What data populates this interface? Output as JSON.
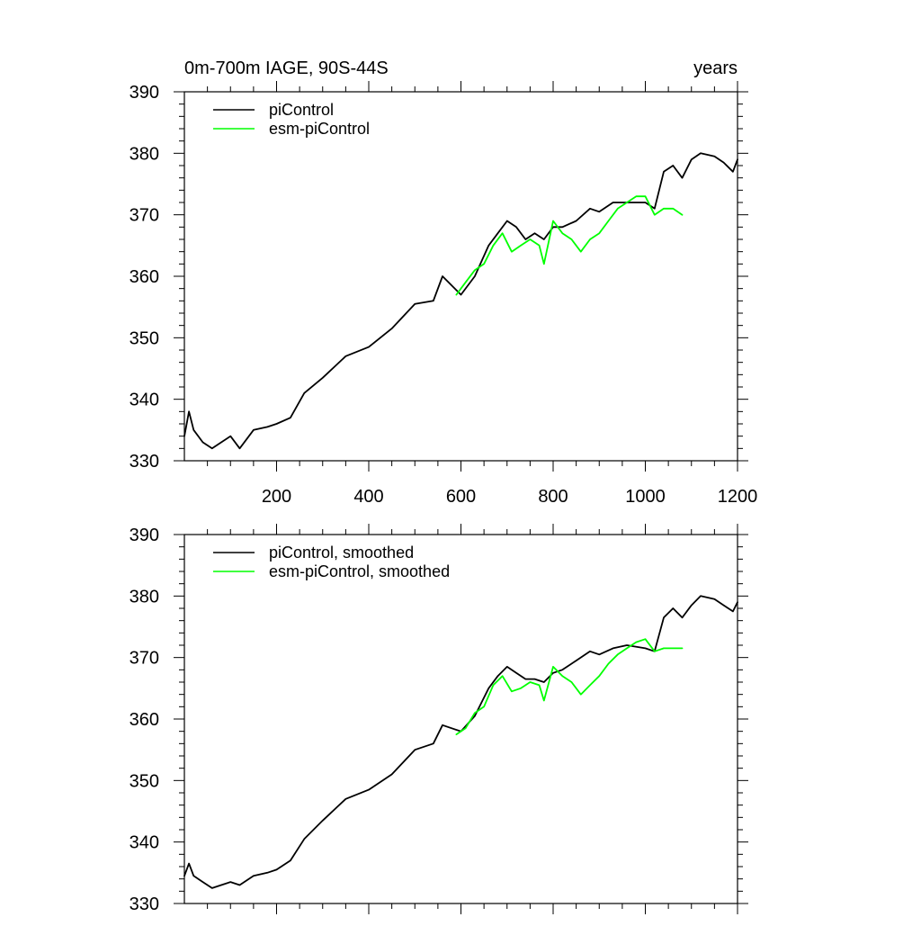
{
  "chart_data": [
    {
      "type": "line",
      "title": "0m-700m IAGE, 90S-44S",
      "units": "years",
      "xlim": [
        0,
        1200
      ],
      "ylim": [
        330,
        390
      ],
      "xticks": [
        200,
        400,
        600,
        800,
        1000,
        1200
      ],
      "yticks": [
        330,
        340,
        350,
        360,
        370,
        380,
        390
      ],
      "show_x_tick_labels": true,
      "series": [
        {
          "name": "piControl",
          "color": "#000000",
          "x": [
            0,
            10,
            20,
            40,
            60,
            80,
            100,
            120,
            150,
            180,
            200,
            230,
            260,
            300,
            350,
            400,
            450,
            500,
            540,
            560,
            600,
            630,
            660,
            680,
            700,
            720,
            740,
            760,
            780,
            800,
            820,
            850,
            880,
            900,
            930,
            960,
            1000,
            1020,
            1040,
            1060,
            1080,
            1100,
            1120,
            1150,
            1170,
            1190,
            1200
          ],
          "y": [
            334,
            338,
            335,
            333,
            332,
            333,
            334,
            332,
            335,
            335.5,
            336,
            337,
            341,
            343.5,
            347,
            348.5,
            351.5,
            355.5,
            356,
            360,
            357,
            360,
            365,
            367,
            369,
            368,
            366,
            367,
            366,
            368,
            368,
            369,
            371,
            370.5,
            372,
            372,
            372,
            371,
            377,
            378,
            376,
            379,
            380,
            379.5,
            378.5,
            377,
            379
          ]
        },
        {
          "name": "esm-piControl",
          "color": "#00ff00",
          "x": [
            590,
            610,
            630,
            650,
            670,
            690,
            710,
            730,
            750,
            770,
            780,
            800,
            820,
            840,
            860,
            880,
            900,
            920,
            940,
            960,
            980,
            1000,
            1020,
            1040,
            1060,
            1080
          ],
          "y": [
            357,
            359,
            361,
            362,
            365,
            367,
            364,
            365,
            366,
            365,
            362,
            369,
            367,
            366,
            364,
            366,
            367,
            369,
            371,
            372,
            373,
            373,
            370,
            371,
            371,
            370
          ]
        }
      ],
      "legend": {
        "position": "top-left",
        "entries": [
          "piControl",
          "esm-piControl"
        ]
      }
    },
    {
      "type": "line",
      "title": "",
      "units": "",
      "xlim": [
        0,
        1200
      ],
      "ylim": [
        330,
        390
      ],
      "xticks": [
        200,
        400,
        600,
        800,
        1000,
        1200
      ],
      "yticks": [
        330,
        340,
        350,
        360,
        370,
        380,
        390
      ],
      "show_x_tick_labels": false,
      "series": [
        {
          "name": "piControl, smoothed",
          "color": "#000000",
          "x": [
            0,
            10,
            20,
            40,
            60,
            80,
            100,
            120,
            150,
            180,
            200,
            230,
            260,
            300,
            350,
            400,
            450,
            500,
            540,
            560,
            600,
            630,
            660,
            680,
            700,
            720,
            740,
            760,
            780,
            800,
            820,
            850,
            880,
            900,
            930,
            960,
            1000,
            1020,
            1040,
            1060,
            1080,
            1100,
            1120,
            1150,
            1170,
            1190,
            1200
          ],
          "y": [
            334.5,
            336.5,
            334.5,
            333.5,
            332.5,
            333,
            333.5,
            333,
            334.5,
            335,
            335.5,
            337,
            340.5,
            343.5,
            347,
            348.5,
            351,
            355,
            356,
            359,
            358,
            360.5,
            365,
            367,
            368.5,
            367.5,
            366.5,
            366.5,
            366,
            367.5,
            368,
            369.5,
            371,
            370.5,
            371.5,
            372,
            371.5,
            371,
            376.5,
            378,
            376.5,
            378.5,
            380,
            379.5,
            378.5,
            377.5,
            379
          ]
        },
        {
          "name": "esm-piControl, smoothed",
          "color": "#00ff00",
          "x": [
            590,
            610,
            630,
            650,
            670,
            690,
            710,
            730,
            750,
            770,
            780,
            800,
            820,
            840,
            860,
            880,
            900,
            920,
            940,
            960,
            980,
            1000,
            1020,
            1040,
            1060,
            1080
          ],
          "y": [
            357.5,
            358.5,
            361,
            362,
            365.5,
            367,
            364.5,
            365,
            366,
            365.5,
            363,
            368.5,
            367,
            366,
            364,
            365.5,
            367,
            369,
            370.5,
            371.5,
            372.5,
            373,
            371,
            371.5,
            371.5,
            371.5
          ]
        }
      ],
      "legend": {
        "position": "top-left",
        "entries": [
          "piControl, smoothed",
          "esm-piControl, smoothed"
        ]
      }
    }
  ]
}
